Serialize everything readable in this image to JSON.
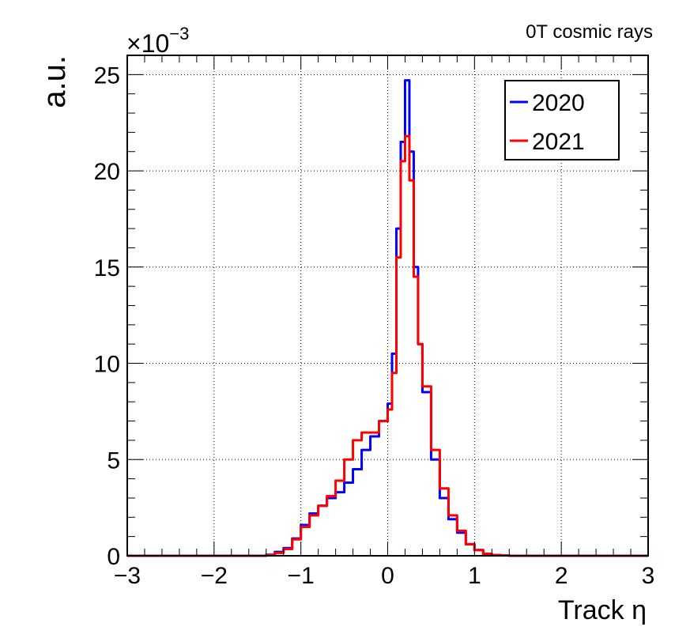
{
  "chart_data": {
    "type": "line",
    "title": "0T cosmic rays",
    "xlabel": "Track η",
    "ylabel": "a.u.",
    "y_multiplier_label": "×10",
    "y_multiplier_exponent": "−3",
    "xlim": [
      -3,
      3
    ],
    "ylim": [
      0,
      26
    ],
    "x_ticks": [
      -3,
      -2,
      -1,
      0,
      1,
      2,
      3
    ],
    "x_tick_labels": [
      "−3",
      "−2",
      "−1",
      "0",
      "1",
      "2",
      "3"
    ],
    "y_ticks": [
      0,
      5,
      10,
      15,
      20,
      25
    ],
    "y_tick_labels": [
      "0",
      "5",
      "10",
      "15",
      "20",
      "25"
    ],
    "grid": true,
    "legend_position": "top-right",
    "series": [
      {
        "name": "2020",
        "color": "#0000ff",
        "x": [
          -3.0,
          -1.6,
          -1.4,
          -1.3,
          -1.2,
          -1.1,
          -1.0,
          -0.9,
          -0.8,
          -0.7,
          -0.6,
          -0.5,
          -0.4,
          -0.3,
          -0.2,
          -0.1,
          0.0,
          0.05,
          0.1,
          0.15,
          0.2,
          0.25,
          0.3,
          0.35,
          0.4,
          0.5,
          0.6,
          0.7,
          0.8,
          0.9,
          1.0,
          1.1,
          1.2,
          1.3,
          1.4,
          3.0
        ],
        "y": [
          0.0,
          0.0,
          0.05,
          0.2,
          0.4,
          0.9,
          1.6,
          2.2,
          2.6,
          3.0,
          3.3,
          3.8,
          4.5,
          5.5,
          6.2,
          7.0,
          7.9,
          10.5,
          17.0,
          21.5,
          24.7,
          21.0,
          15.0,
          11.0,
          8.5,
          5.0,
          3.0,
          1.9,
          1.2,
          0.6,
          0.3,
          0.1,
          0.04,
          0.02,
          0.0,
          0.0
        ]
      },
      {
        "name": "2021",
        "color": "#ff0000",
        "x": [
          -3.0,
          -1.6,
          -1.4,
          -1.3,
          -1.2,
          -1.1,
          -1.0,
          -0.9,
          -0.8,
          -0.7,
          -0.6,
          -0.5,
          -0.4,
          -0.3,
          -0.2,
          -0.1,
          0.0,
          0.05,
          0.1,
          0.15,
          0.2,
          0.25,
          0.3,
          0.35,
          0.4,
          0.5,
          0.6,
          0.7,
          0.8,
          0.9,
          1.0,
          1.1,
          1.2,
          1.3,
          1.4,
          3.0
        ],
        "y": [
          0.0,
          0.0,
          0.03,
          0.15,
          0.35,
          0.85,
          1.5,
          2.1,
          2.6,
          3.1,
          3.9,
          5.0,
          6.0,
          6.4,
          6.4,
          7.0,
          7.6,
          9.5,
          15.5,
          20.5,
          21.8,
          19.5,
          14.5,
          11.0,
          8.8,
          5.5,
          3.5,
          2.1,
          1.3,
          0.6,
          0.3,
          0.1,
          0.04,
          0.02,
          0.0,
          0.0
        ]
      }
    ]
  }
}
